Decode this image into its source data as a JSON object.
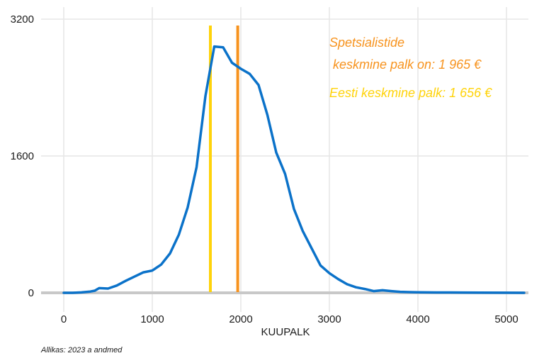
{
  "chart_data": {
    "type": "line",
    "xlabel": "KUUPALK",
    "ylabel": "",
    "title": "",
    "xlim": [
      -100,
      5250
    ],
    "ylim": [
      0,
      3200
    ],
    "xticks": [
      0,
      1000,
      2000,
      3000,
      4000,
      5000
    ],
    "yticks": [
      0,
      1600,
      3200
    ],
    "grid": true,
    "series": [
      {
        "color": "#0b72c9",
        "x": [
          0,
          100,
          200,
          300,
          350,
          400,
          500,
          600,
          700,
          800,
          900,
          1000,
          1100,
          1200,
          1300,
          1400,
          1500,
          1600,
          1700,
          1800,
          1900,
          2000,
          2100,
          2200,
          2300,
          2400,
          2500,
          2600,
          2700,
          2800,
          2900,
          3000,
          3100,
          3200,
          3300,
          3400,
          3500,
          3600,
          3700,
          3800,
          3900,
          4000,
          4200,
          4500,
          4700,
          5000,
          5200
        ],
        "y": [
          0,
          0,
          5,
          15,
          25,
          55,
          50,
          85,
          140,
          190,
          240,
          260,
          330,
          460,
          680,
          1000,
          1470,
          2300,
          2880,
          2870,
          2690,
          2620,
          2560,
          2430,
          2080,
          1640,
          1390,
          980,
          720,
          520,
          320,
          230,
          160,
          100,
          65,
          45,
          20,
          30,
          20,
          12,
          8,
          6,
          4,
          3,
          2,
          1,
          0
        ]
      }
    ],
    "vlines": [
      {
        "x": 1656,
        "color": "#ffd30a"
      },
      {
        "x": 1965,
        "color": "#f7931e"
      }
    ],
    "annotations": [
      {
        "text": "Spetsialistide",
        "color": "#f7931e"
      },
      {
        "text": " keskmine palk on: 1 965 €",
        "color": "#f7931e"
      },
      {
        "text": "Eesti keskmine palk: 1 656 €",
        "color": "#ffd30a"
      }
    ],
    "source": "Allikas: 2023 a andmed"
  }
}
